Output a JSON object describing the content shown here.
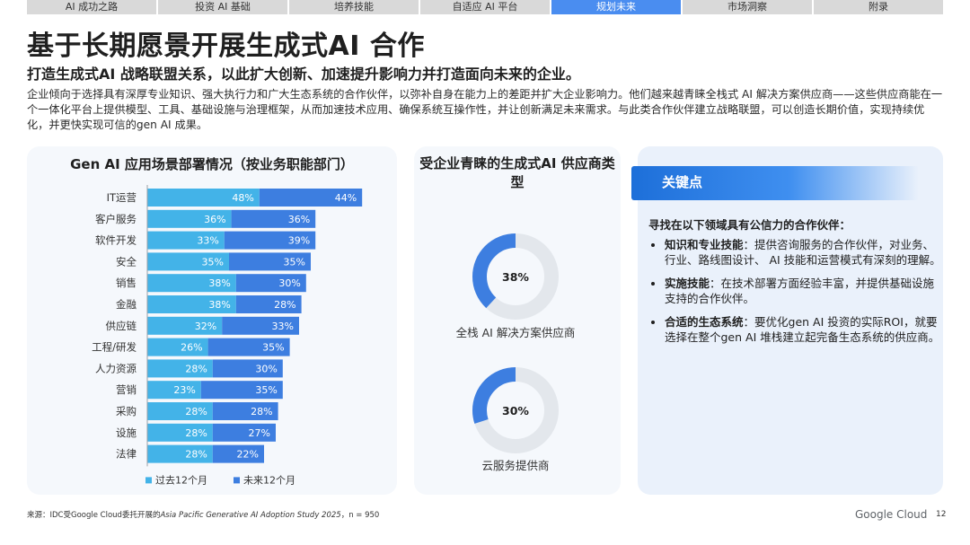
{
  "nav": {
    "tabs": [
      "AI 成功之路",
      "投资 AI 基础",
      "培养技能",
      "自适应 AI 平台",
      "规划未来",
      "市场洞察",
      "附录"
    ],
    "active_index": 4
  },
  "header": {
    "title": "基于长期愿景开展生成式AI 合作",
    "subtitle": "打造生成式AI 战略联盟关系，以此扩大创新、加速提升影响力并打造面向未来的企业。",
    "body": "企业倾向于选择具有深厚专业知识、强大执行力和广大生态系统的合作伙伴，以弥补自身在能力上的差距并扩大企业影响力。他们越来越青睐全栈式 AI 解决方案供应商——这些供应商能在一个一体化平台上提供模型、工具、基础设施与治理框架，从而加速技术应用、确保系统互操作性，并让创新满足未来需求。与此类合作伙伴建立战略联盟，可以创造长期价值，实现持续优化，并更快实现可信的gen AI 成果。"
  },
  "chart_data": [
    {
      "type": "bar",
      "orientation": "horizontal",
      "stacked": true,
      "title": "Gen AI 应用场景部署情况（按业务职能部门）",
      "categories": [
        "IT运营",
        "客户服务",
        "软件开发",
        "安全",
        "销售",
        "金融",
        "供应链",
        "工程/研发",
        "人力资源",
        "营销",
        "采购",
        "设施",
        "法律"
      ],
      "series": [
        {
          "name": "过去12个月",
          "color": "#43b3e8",
          "values": [
            48,
            36,
            33,
            35,
            38,
            38,
            32,
            26,
            28,
            23,
            28,
            28,
            28
          ]
        },
        {
          "name": "未来12个月",
          "color": "#3d7ee0",
          "values": [
            44,
            36,
            39,
            35,
            30,
            28,
            33,
            35,
            30,
            35,
            28,
            27,
            22
          ]
        }
      ],
      "value_suffix": "%",
      "legend": "bottom-left"
    },
    {
      "type": "pie",
      "style": "donut",
      "title": "受企业青睐的生成式AI 供应商类型",
      "items": [
        {
          "label": "全栈 AI 解决方案供应商",
          "value": 38,
          "display": "38%"
        },
        {
          "label": "云服务提供商",
          "value": 30,
          "display": "30%"
        }
      ],
      "colors": {
        "filled": "#3d7ee0",
        "remaining": "#e3e7ec"
      }
    }
  ],
  "key_points": {
    "title": "关键点",
    "intro": "寻找在以下领域具有公信力的合作伙伴：",
    "items": [
      {
        "label": "知识和专业技能",
        "text": "：提供咨询服务的合作伙伴，对业务、行业、路线图设计、 AI 技能和运营模式有深刻的理解。"
      },
      {
        "label": "实施技能",
        "text": "：在技术部署方面经验丰富，并提供基础设施支持的合作伙伴。"
      },
      {
        "label": "合适的生态系统",
        "text": "：要优化gen AI 投资的实际ROI，就要选择在整个gen AI 堆栈建立起完备生态系统的供应商。"
      }
    ]
  },
  "footer": {
    "source_prefix": "来源：IDC受Google Cloud委托开展的",
    "source_study": "Asia Pacific Generative AI Adoption Study 2025",
    "source_suffix": "，n = 950",
    "logo": "Google Cloud",
    "page": "12"
  },
  "colors": {
    "accent": "#4a8df0",
    "tab_inactive": "#d9d9d9",
    "panel": "#f5f8fc",
    "panel_key": "#eaf1fb",
    "keybar": "#1d6fd9"
  }
}
